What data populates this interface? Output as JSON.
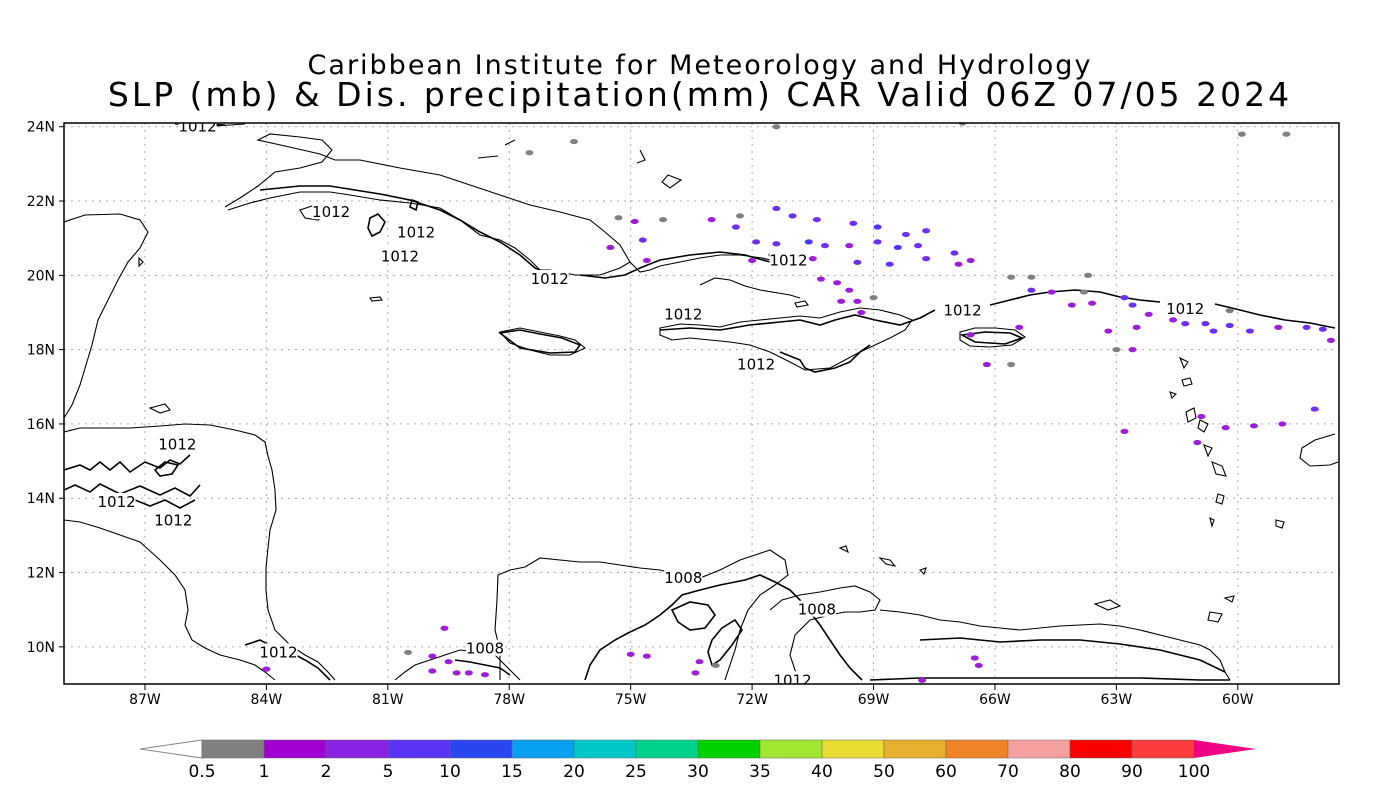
{
  "title": {
    "line1": "Caribbean Institute for Meteorology and Hydrology",
    "line2": "SLP (mb) & Dis. precipitation(mm) CAR Valid 06Z 07/05 2024"
  },
  "map": {
    "lon_range": [
      -89,
      -57.5
    ],
    "lat_range": [
      9,
      24.1
    ],
    "x_ticks": [
      {
        "lon": -87,
        "label": "87W"
      },
      {
        "lon": -84,
        "label": "84W"
      },
      {
        "lon": -81,
        "label": "81W"
      },
      {
        "lon": -78,
        "label": "78W"
      },
      {
        "lon": -75,
        "label": "75W"
      },
      {
        "lon": -72,
        "label": "72W"
      },
      {
        "lon": -69,
        "label": "69W"
      },
      {
        "lon": -66,
        "label": "66W"
      },
      {
        "lon": -63,
        "label": "63W"
      },
      {
        "lon": -60,
        "label": "60W"
      }
    ],
    "y_ticks": [
      {
        "lat": 24,
        "label": "24N"
      },
      {
        "lat": 22,
        "label": "22N"
      },
      {
        "lat": 20,
        "label": "20N"
      },
      {
        "lat": 18,
        "label": "18N"
      },
      {
        "lat": 16,
        "label": "16N"
      },
      {
        "lat": 14,
        "label": "14N"
      },
      {
        "lat": 12,
        "label": "12N"
      },
      {
        "lat": 10,
        "label": "10N"
      }
    ],
    "gridlines": true,
    "isobar_labels": [
      {
        "lon": -85.7,
        "lat": 24.0,
        "text": "1012"
      },
      {
        "lon": -82.4,
        "lat": 21.7,
        "text": "1012"
      },
      {
        "lon": -80.3,
        "lat": 21.15,
        "text": "1012"
      },
      {
        "lon": -80.7,
        "lat": 20.5,
        "text": "1012"
      },
      {
        "lon": -77.0,
        "lat": 19.9,
        "text": "1012"
      },
      {
        "lon": -71.1,
        "lat": 20.4,
        "text": "1012"
      },
      {
        "lon": -73.7,
        "lat": 18.95,
        "text": "1012"
      },
      {
        "lon": -71.9,
        "lat": 17.6,
        "text": "1012"
      },
      {
        "lon": -66.8,
        "lat": 19.05,
        "text": "1012"
      },
      {
        "lon": -61.3,
        "lat": 19.1,
        "text": "1012"
      },
      {
        "lon": -86.2,
        "lat": 15.45,
        "text": "1012"
      },
      {
        "lon": -87.7,
        "lat": 13.9,
        "text": "1012"
      },
      {
        "lon": -86.3,
        "lat": 13.4,
        "text": "1012"
      },
      {
        "lon": -83.7,
        "lat": 9.85,
        "text": "1012"
      },
      {
        "lon": -71.0,
        "lat": 9.1,
        "text": "1012"
      },
      {
        "lon": -73.7,
        "lat": 11.85,
        "text": "1008"
      },
      {
        "lon": -78.6,
        "lat": 9.95,
        "text": "1008"
      },
      {
        "lon": -70.4,
        "lat": 11.0,
        "text": "1008"
      }
    ],
    "precip_colors": {
      "gray": "#808080",
      "violet": "#9a1fd6",
      "blue_violet": "#6b2ff0",
      "blue": "#4a35f5"
    },
    "precip_cells": [
      [
        -77.5,
        23.3,
        "gray"
      ],
      [
        -76.4,
        23.6,
        "gray"
      ],
      [
        -71.4,
        24.0,
        "gray"
      ],
      [
        -66.8,
        24.1,
        "gray"
      ],
      [
        -58.8,
        23.8,
        "gray"
      ],
      [
        -59.9,
        23.8,
        "gray"
      ],
      [
        -72.3,
        21.6,
        "gray"
      ],
      [
        -74.2,
        21.5,
        "gray"
      ],
      [
        -73.0,
        21.5,
        "violet"
      ],
      [
        -72.4,
        21.3,
        "blue_violet"
      ],
      [
        -71.4,
        21.8,
        "blue_violet"
      ],
      [
        -71.0,
        21.6,
        "blue_violet"
      ],
      [
        -70.4,
        21.5,
        "blue_violet"
      ],
      [
        -69.5,
        21.4,
        "blue_violet"
      ],
      [
        -68.9,
        21.3,
        "blue"
      ],
      [
        -68.2,
        21.1,
        "blue_violet"
      ],
      [
        -67.7,
        21.2,
        "blue_violet"
      ],
      [
        -71.9,
        20.9,
        "blue_violet"
      ],
      [
        -71.4,
        20.85,
        "blue_violet"
      ],
      [
        -70.6,
        20.9,
        "blue"
      ],
      [
        -70.2,
        20.8,
        "blue_violet"
      ],
      [
        -69.6,
        20.8,
        "violet"
      ],
      [
        -68.9,
        20.9,
        "blue_violet"
      ],
      [
        -68.4,
        20.75,
        "blue"
      ],
      [
        -67.9,
        20.8,
        "blue_violet"
      ],
      [
        -67.0,
        20.6,
        "blue_violet"
      ],
      [
        -72.0,
        20.4,
        "violet"
      ],
      [
        -71.5,
        20.55,
        "blue_violet"
      ],
      [
        -70.5,
        20.45,
        "violet"
      ],
      [
        -69.4,
        20.35,
        "blue_violet"
      ],
      [
        -68.6,
        20.3,
        "blue_violet"
      ],
      [
        -67.7,
        20.45,
        "blue_violet"
      ],
      [
        -66.9,
        20.3,
        "violet"
      ],
      [
        -66.6,
        20.4,
        "violet"
      ],
      [
        -70.3,
        19.9,
        "violet"
      ],
      [
        -69.9,
        19.8,
        "violet"
      ],
      [
        -69.6,
        19.6,
        "violet"
      ],
      [
        -69.8,
        19.3,
        "violet"
      ],
      [
        -69.4,
        19.3,
        "violet"
      ],
      [
        -69.0,
        19.4,
        "gray"
      ],
      [
        -69.3,
        19.0,
        "violet"
      ],
      [
        -74.9,
        21.45,
        "violet"
      ],
      [
        -75.3,
        21.55,
        "gray"
      ],
      [
        -74.7,
        20.95,
        "blue_violet"
      ],
      [
        -75.5,
        20.75,
        "violet"
      ],
      [
        -74.6,
        20.4,
        "violet"
      ],
      [
        -65.1,
        19.6,
        "blue_violet"
      ],
      [
        -64.6,
        19.55,
        "violet"
      ],
      [
        -63.8,
        19.55,
        "gray"
      ],
      [
        -62.8,
        19.4,
        "blue_violet"
      ],
      [
        -65.6,
        19.95,
        "gray"
      ],
      [
        -65.1,
        19.95,
        "gray"
      ],
      [
        -63.7,
        20.0,
        "gray"
      ],
      [
        -64.1,
        19.2,
        "violet"
      ],
      [
        -63.6,
        19.25,
        "violet"
      ],
      [
        -62.6,
        19.2,
        "blue_violet"
      ],
      [
        -62.2,
        18.95,
        "violet"
      ],
      [
        -61.6,
        18.8,
        "violet"
      ],
      [
        -60.2,
        19.05,
        "gray"
      ],
      [
        -61.3,
        18.7,
        "blue_violet"
      ],
      [
        -60.8,
        18.7,
        "blue_violet"
      ],
      [
        -60.2,
        18.65,
        "blue_violet"
      ],
      [
        -59.0,
        18.6,
        "violet"
      ],
      [
        -58.3,
        18.6,
        "blue_violet"
      ],
      [
        -57.9,
        18.55,
        "blue_violet"
      ],
      [
        -62.5,
        18.6,
        "violet"
      ],
      [
        -63.2,
        18.5,
        "violet"
      ],
      [
        -63.0,
        18.0,
        "gray"
      ],
      [
        -62.6,
        18.0,
        "violet"
      ],
      [
        -60.6,
        18.5,
        "blue_violet"
      ],
      [
        -59.7,
        18.5,
        "blue_violet"
      ],
      [
        -57.7,
        18.25,
        "violet"
      ],
      [
        -65.4,
        18.6,
        "violet"
      ],
      [
        -66.6,
        18.4,
        "violet"
      ],
      [
        -66.2,
        17.6,
        "violet"
      ],
      [
        -65.6,
        17.6,
        "gray"
      ],
      [
        -60.3,
        15.9,
        "violet"
      ],
      [
        -59.6,
        15.95,
        "violet"
      ],
      [
        -58.9,
        16.0,
        "violet"
      ],
      [
        -58.1,
        16.4,
        "blue_violet"
      ],
      [
        -60.9,
        16.2,
        "violet"
      ],
      [
        -61.0,
        15.5,
        "violet"
      ],
      [
        -62.8,
        15.8,
        "violet"
      ],
      [
        -79.9,
        9.75,
        "violet"
      ],
      [
        -79.5,
        9.6,
        "violet"
      ],
      [
        -79.9,
        9.35,
        "violet"
      ],
      [
        -79.3,
        9.3,
        "violet"
      ],
      [
        -79.0,
        9.3,
        "violet"
      ],
      [
        -78.6,
        9.25,
        "violet"
      ],
      [
        -79.6,
        10.5,
        "violet"
      ],
      [
        -80.5,
        9.85,
        "gray"
      ],
      [
        -75.0,
        9.8,
        "violet"
      ],
      [
        -74.6,
        9.75,
        "violet"
      ],
      [
        -73.3,
        9.6,
        "violet"
      ],
      [
        -73.4,
        9.3,
        "violet"
      ],
      [
        -72.9,
        9.5,
        "gray"
      ],
      [
        -66.5,
        9.7,
        "violet"
      ],
      [
        -66.4,
        9.5,
        "violet"
      ],
      [
        -67.8,
        9.1,
        "violet"
      ],
      [
        -84.0,
        9.4,
        "violet"
      ]
    ]
  },
  "colorbar": {
    "colors": [
      "#ffffff",
      "#808080",
      "#a000d0",
      "#8a20e0",
      "#5a33f5",
      "#2a46f0",
      "#0aa0f0",
      "#00c8c8",
      "#00d28c",
      "#00d200",
      "#a0e632",
      "#e6dc32",
      "#e6af2d",
      "#f08228",
      "#f5a0a0",
      "#fa0000",
      "#fa3c3c",
      "#f00082"
    ],
    "labels": [
      "0.5",
      "1",
      "2",
      "5",
      "10",
      "15",
      "20",
      "25",
      "30",
      "35",
      "40",
      "50",
      "60",
      "70",
      "80",
      "90",
      "100"
    ]
  }
}
